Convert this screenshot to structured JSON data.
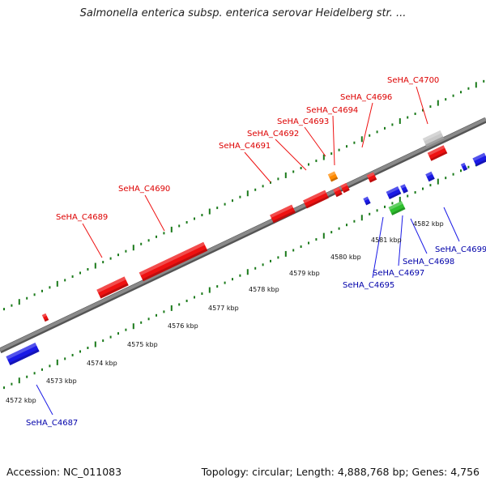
{
  "title": "Salmonella enterica subsp. enterica serovar Heidelberg str. ...",
  "footer": {
    "accession": "Accession: NC_011083",
    "stats": "Topology: circular; Length: 4,888,768 bp; Genes: 4,756"
  },
  "colors": {
    "top_strand_gene": "#ee1111",
    "bottom_strand_gene": "#1a1ae6",
    "top_label": "#dd0000",
    "bottom_label": "#0000aa",
    "tick": "#1a7a1a",
    "backbone": "#8a8a8a",
    "rna_orange": "#ff8a00",
    "rna_green": "#2ec02e",
    "pseudogene_grey": "#c8c8c8"
  },
  "scale_unit": "kbp",
  "scale_ticks": [
    4572,
    4573,
    4574,
    4575,
    4576,
    4577,
    4578,
    4579,
    4580,
    4581,
    4582
  ],
  "top_labels": [
    "SeHA_C4689",
    "SeHA_C4690",
    "SeHA_C4691",
    "SeHA_C4692",
    "SeHA_C4693",
    "SeHA_C4694",
    "SeHA_C4696",
    "SeHA_C4700"
  ],
  "bottom_labels": [
    "SeHA_C4687",
    "SeHA_C4695",
    "SeHA_C4697",
    "SeHA_C4698",
    "SeHA_C4699"
  ]
}
